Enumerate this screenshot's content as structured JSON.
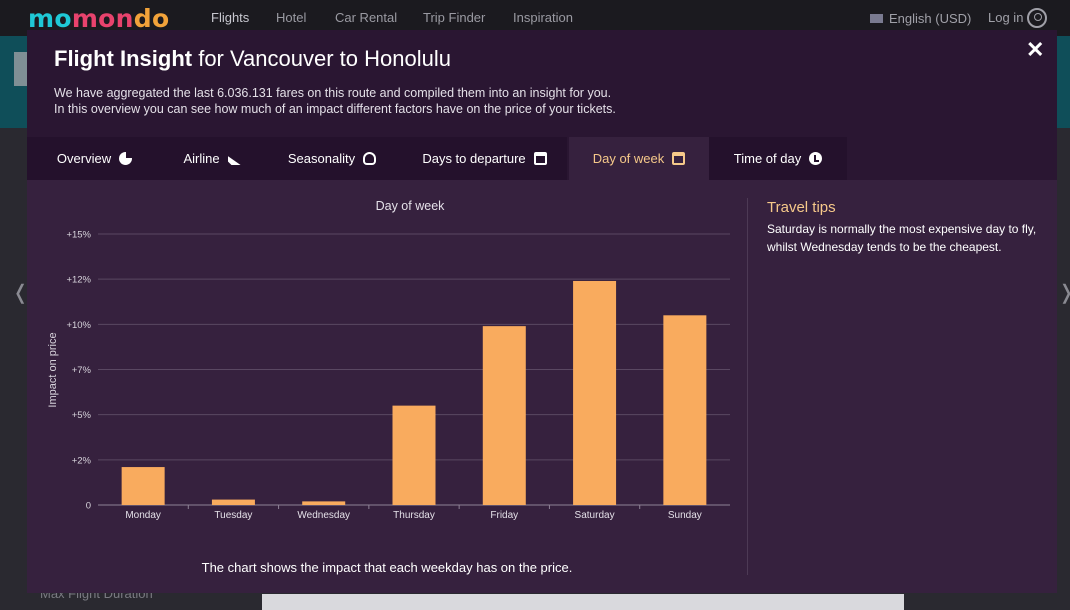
{
  "topnav": {
    "logo_parts": [
      "mo",
      "mo",
      "ndo"
    ],
    "logo_split": [
      "mo",
      "mon",
      "do"
    ],
    "items": [
      "Flights",
      "Hotel",
      "Car Rental",
      "Trip Finder",
      "Inspiration"
    ],
    "active_item": "Flights",
    "language": "English (USD)",
    "login": "Log in"
  },
  "background": {
    "bottom_text": "Max Flight Duration",
    "prev_arrow": "❬",
    "next_arrow": "❭"
  },
  "modal": {
    "title_bold": "Flight Insight",
    "title_rest": " for Vancouver to Honolulu",
    "close_symbol": "✕",
    "description_line1": "We have aggregated the last 6.036.131 fares on this route and compiled them into an insight for you.",
    "description_line2": "In this overview you can see how much of an impact different factors have on the price of your tickets.",
    "tabs": [
      {
        "label": "Overview",
        "icon": "pie-chart-icon"
      },
      {
        "label": "Airline",
        "icon": "plane-icon"
      },
      {
        "label": "Seasonality",
        "icon": "weather-icon"
      },
      {
        "label": "Days to departure",
        "icon": "calendar-icon"
      },
      {
        "label": "Day of week",
        "icon": "calendar-week-icon",
        "active": true
      },
      {
        "label": "Time of day",
        "icon": "clock-icon"
      }
    ],
    "travel_tips_title": "Travel tips",
    "travel_tips_text": "Saturday is normally the most expensive day to fly, whilst Wednesday tends to be the cheapest.",
    "caption": "The chart shows the impact that each weekday has on the price."
  },
  "colors": {
    "bar": "#f9ab5e",
    "accent": "#f6c98a",
    "modal_bg": "#2a1632",
    "content_bg": "#36213e"
  },
  "chart_data": {
    "type": "bar",
    "title": "Day of week",
    "xlabel": "",
    "ylabel": "Impact on price",
    "categories": [
      "Monday",
      "Tuesday",
      "Wednesday",
      "Thursday",
      "Friday",
      "Saturday",
      "Sunday"
    ],
    "values": [
      2.1,
      0.3,
      0.2,
      5.5,
      9.9,
      12.4,
      10.5
    ],
    "yticks": [
      "0",
      "+2%",
      "+5%",
      "+7%",
      "+10%",
      "+12%",
      "+15%"
    ],
    "ylim": [
      0,
      15
    ],
    "grid": true
  }
}
